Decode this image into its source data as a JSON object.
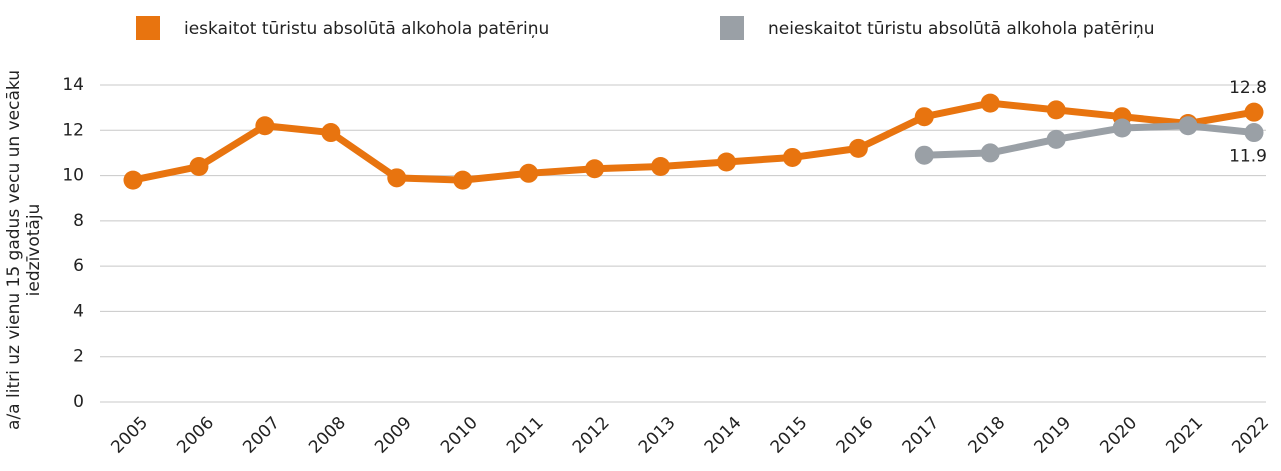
{
  "chart_data": {
    "type": "line",
    "ylabel": [
      "a/a litri uz vienu 15 gadus vecu un vecāku",
      "iedzīvotāju"
    ],
    "categories": [
      "2005",
      "2006",
      "2007",
      "2008",
      "2009",
      "2010",
      "2011",
      "2012",
      "2013",
      "2014",
      "2015",
      "2016",
      "2017",
      "2018",
      "2019",
      "2020",
      "2021",
      "2022"
    ],
    "series": [
      {
        "name": "ieskaitot tūristu absolūtā alkohola patēriņu",
        "color": "#e8740f",
        "values": [
          9.8,
          10.4,
          12.2,
          11.9,
          9.9,
          9.8,
          10.1,
          10.3,
          10.4,
          10.6,
          10.8,
          11.2,
          12.6,
          13.2,
          12.9,
          12.6,
          12.3,
          12.8
        ],
        "value_labels": [
          null,
          null,
          null,
          null,
          null,
          null,
          null,
          null,
          null,
          null,
          null,
          null,
          null,
          null,
          null,
          null,
          null,
          "12.8"
        ]
      },
      {
        "name": "neieskaitot tūristu absolūtā alkohola patēriņu",
        "color": "#9aa0a6",
        "values": [
          null,
          null,
          null,
          null,
          null,
          null,
          null,
          null,
          null,
          null,
          null,
          null,
          10.9,
          11.0,
          11.6,
          12.1,
          12.2,
          11.9
        ],
        "value_labels": [
          null,
          null,
          null,
          null,
          null,
          null,
          null,
          null,
          null,
          null,
          null,
          null,
          null,
          null,
          null,
          null,
          null,
          "11.9"
        ]
      }
    ],
    "ylim": [
      0,
      14
    ],
    "yticks": [
      0,
      2,
      4,
      6,
      8,
      10,
      12,
      14
    ],
    "grid": true
  }
}
